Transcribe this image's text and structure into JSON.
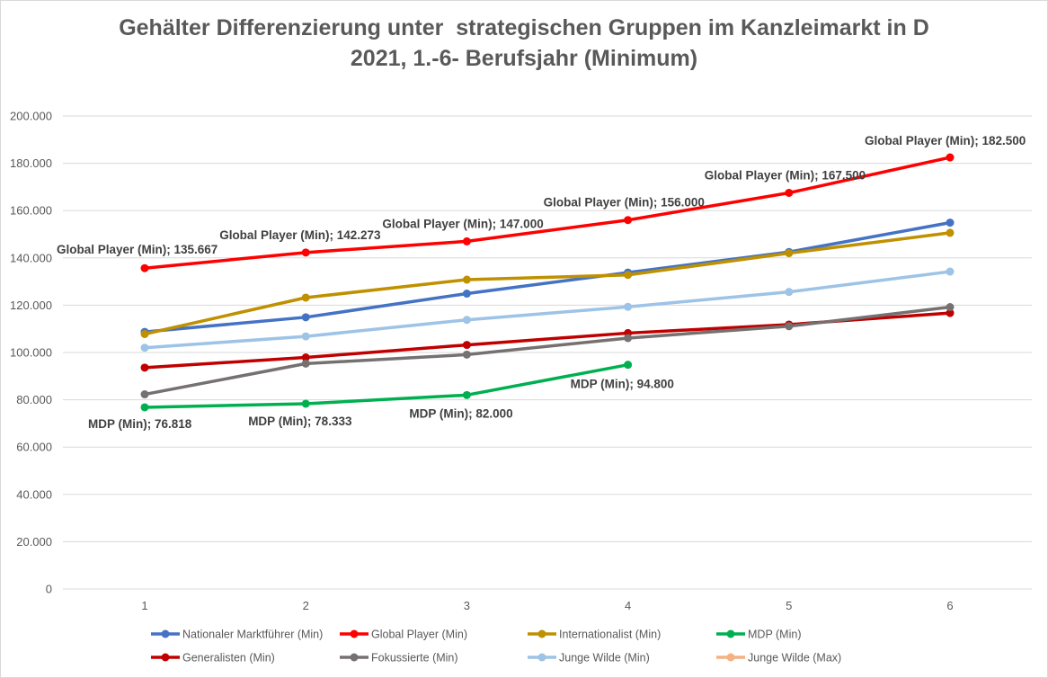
{
  "chart_data": {
    "type": "line",
    "title": "Gehälter Differenzierung unter  strategischen Gruppen im Kanzleimarkt in D",
    "subtitle": "2021, 1.-6- Berufsjahr (Minimum)",
    "xlabel": "",
    "ylabel": "",
    "x": [
      1,
      2,
      3,
      4,
      5,
      6
    ],
    "x_tick_labels": [
      "1",
      "2",
      "3",
      "4",
      "5",
      "6"
    ],
    "ylim": [
      0,
      200000
    ],
    "y_tick_labels": [
      "0",
      "20.000",
      "40.000",
      "60.000",
      "80.000",
      "100.000",
      "120.000",
      "140.000",
      "160.000",
      "180.000",
      "200.000"
    ],
    "grid": "horizontal",
    "legend_position": "bottom",
    "series": [
      {
        "name": "Nationaler Marktführer (Min)",
        "color": "#4472c4",
        "values": [
          108700,
          114900,
          124900,
          133800,
          142500,
          154900
        ]
      },
      {
        "name": "Global Player (Min)",
        "color": "#ff0000",
        "values": [
          135667,
          142273,
          147000,
          156000,
          167500,
          182500
        ],
        "labels": [
          "Global Player (Min); 135.667",
          "Global Player (Min); 142.273",
          "Global Player (Min); 147.000",
          "Global Player (Min); 156.000",
          "Global Player (Min); 167.500",
          "Global Player (Min); 182.500"
        ]
      },
      {
        "name": "Internationalist (Min)",
        "color": "#bf9000",
        "values": [
          107800,
          123200,
          130800,
          132800,
          142000,
          150600
        ]
      },
      {
        "name": "MDP (Min)",
        "color": "#00b050",
        "values": [
          76818,
          78333,
          82000,
          94800,
          null,
          null
        ],
        "labels": [
          "MDP (Min); 76.818",
          "MDP (Min); 78.333",
          "MDP (Min); 82.000",
          "MDP (Min); 94.800",
          "",
          ""
        ]
      },
      {
        "name": "Generalisten (Min)",
        "color": "#c00000",
        "values": [
          93600,
          97900,
          103200,
          108200,
          111800,
          116700
        ]
      },
      {
        "name": "Fokussierte  (Min)",
        "color": "#767171",
        "values": [
          82300,
          95300,
          99100,
          106100,
          111100,
          119200
        ]
      },
      {
        "name": "Junge Wilde (Min)",
        "color": "#9dc3e6",
        "values": [
          102000,
          106800,
          113800,
          119300,
          125600,
          134200
        ]
      },
      {
        "name": "Junge Wilde (Max)",
        "color": "#f4b183",
        "values": [
          null,
          null,
          null,
          null,
          null,
          null
        ]
      }
    ]
  }
}
